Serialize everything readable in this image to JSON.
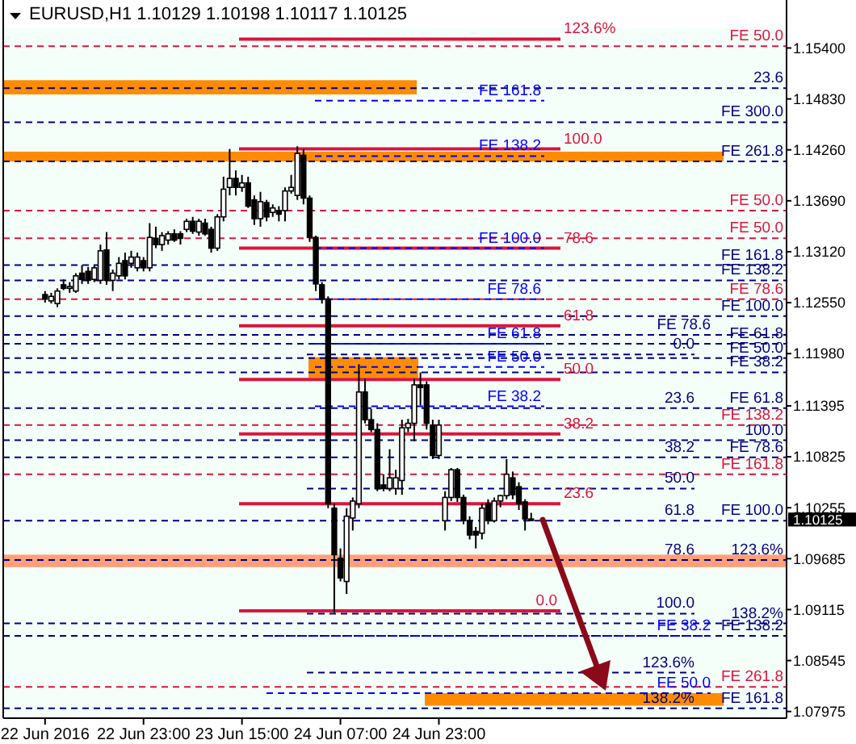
{
  "chart_data": {
    "type": "candlestick",
    "title": "EURUSD,H1  1.10129 1.10198 1.10117 1.10125",
    "categories": [
      "22 Jun 2016",
      null,
      null,
      null,
      null,
      null,
      null,
      null,
      null,
      null,
      null,
      null,
      null,
      null,
      null,
      null,
      "22 Jun 23:00",
      null,
      null,
      null,
      null,
      null,
      null,
      null,
      null,
      null,
      null,
      null,
      null,
      null,
      null,
      null,
      "23 Jun 15:00",
      null,
      null,
      null,
      null,
      null,
      null,
      null,
      null,
      null,
      null,
      null,
      null,
      null,
      null,
      null,
      "24 Jun 07:00",
      null,
      null,
      null,
      null,
      null,
      null,
      null,
      null,
      null,
      null,
      null,
      null,
      null,
      null,
      null,
      "24 Jun 23:00",
      null,
      null,
      null,
      null,
      null,
      null,
      null,
      null,
      null,
      null,
      null,
      null,
      null,
      null,
      null,
      null,
      null,
      null,
      null,
      null,
      null,
      null,
      null,
      null,
      null,
      null,
      null,
      null,
      null,
      null,
      null,
      null,
      null,
      null,
      null,
      null,
      null,
      null,
      null,
      null,
      null,
      null,
      null,
      null,
      null,
      null,
      null,
      null,
      null,
      null,
      null,
      null,
      null,
      null,
      null,
      null
    ],
    "ohlc": [
      [
        1.1264,
        1.1268,
        1.1255,
        1.1259
      ],
      [
        1.1257,
        1.1266,
        1.1254,
        1.1262
      ],
      [
        1.1254,
        1.1271,
        1.125,
        1.1268
      ],
      [
        1.1275,
        1.1281,
        1.1269,
        1.1271
      ],
      [
        1.1271,
        1.1278,
        1.1266,
        1.1273
      ],
      [
        1.1268,
        1.1288,
        1.1266,
        1.1285
      ],
      [
        1.1288,
        1.1297,
        1.1276,
        1.1281
      ],
      [
        1.129,
        1.1295,
        1.1276,
        1.128
      ],
      [
        1.1281,
        1.1297,
        1.1278,
        1.1294
      ],
      [
        1.128,
        1.132,
        1.1276,
        1.1313
      ],
      [
        1.1314,
        1.1334,
        1.1275,
        1.128
      ],
      [
        1.128,
        1.1292,
        1.1268,
        1.1288
      ],
      [
        1.1285,
        1.1306,
        1.1281,
        1.1299
      ],
      [
        1.1302,
        1.1311,
        1.1281,
        1.1285
      ],
      [
        1.1299,
        1.1313,
        1.1294,
        1.1306
      ],
      [
        1.1294,
        1.1311,
        1.129,
        1.1306
      ],
      [
        1.1302,
        1.1306,
        1.129,
        1.1294
      ],
      [
        1.1294,
        1.1344,
        1.129,
        1.1328
      ],
      [
        1.1327,
        1.134,
        1.1316,
        1.132
      ],
      [
        1.132,
        1.1334,
        1.1313,
        1.133
      ],
      [
        1.1325,
        1.1335,
        1.132,
        1.1332
      ],
      [
        1.1332,
        1.1337,
        1.1323,
        1.1325
      ],
      [
        1.1332,
        1.1335,
        1.132,
        1.1327
      ],
      [
        1.1337,
        1.1349,
        1.1334,
        1.1346
      ],
      [
        1.1346,
        1.1351,
        1.1332,
        1.1335
      ],
      [
        1.1334,
        1.1349,
        1.133,
        1.1346
      ],
      [
        1.1344,
        1.1349,
        1.133,
        1.1332
      ],
      [
        1.1337,
        1.134,
        1.1311,
        1.1316
      ],
      [
        1.1316,
        1.1354,
        1.1313,
        1.1351
      ],
      [
        1.1351,
        1.1396,
        1.1346,
        1.1382
      ],
      [
        1.1384,
        1.1427,
        1.1375,
        1.1394
      ],
      [
        1.1394,
        1.1403,
        1.1375,
        1.1384
      ],
      [
        1.1384,
        1.1398,
        1.1379,
        1.1389
      ],
      [
        1.1389,
        1.1396,
        1.1361,
        1.1363
      ],
      [
        1.137,
        1.1375,
        1.1342,
        1.1349
      ],
      [
        1.1349,
        1.1379,
        1.134,
        1.1368
      ],
      [
        1.1367,
        1.137,
        1.1346,
        1.1351
      ],
      [
        1.1356,
        1.1365,
        1.1351,
        1.1361
      ],
      [
        1.1358,
        1.1363,
        1.1346,
        1.1354
      ],
      [
        1.1358,
        1.1384,
        1.1346,
        1.138
      ],
      [
        1.138,
        1.1398,
        1.1377,
        1.1384
      ],
      [
        1.1375,
        1.143,
        1.137,
        1.1422
      ],
      [
        1.142,
        1.1427,
        1.1365,
        1.1372
      ],
      [
        1.1372,
        1.1375,
        1.1323,
        1.1328
      ],
      [
        1.1328,
        1.133,
        1.1268,
        1.1276
      ],
      [
        1.1275,
        1.1278,
        1.1254,
        1.1259
      ],
      [
        1.1259,
        1.1262,
        1.1025,
        1.103
      ],
      [
        1.1025,
        1.103,
        1.0908,
        1.0973
      ],
      [
        1.0969,
        1.098,
        1.0943,
        1.0947
      ],
      [
        1.0943,
        1.1025,
        1.0929,
        1.1016
      ],
      [
        1.1014,
        1.1037,
        1.1,
        1.1033
      ],
      [
        1.103,
        1.1186,
        1.1025,
        1.1155
      ],
      [
        1.1155,
        1.117,
        1.112,
        1.1124
      ],
      [
        1.1124,
        1.1136,
        1.111,
        1.1113
      ],
      [
        1.1113,
        1.112,
        1.1044,
        1.1047
      ],
      [
        1.1051,
        1.1063,
        1.1044,
        1.1047
      ],
      [
        1.1047,
        1.1091,
        1.1044,
        1.1059
      ],
      [
        1.1047,
        1.1068,
        1.104,
        1.1059
      ],
      [
        1.1056,
        1.1124,
        1.104,
        1.1115
      ],
      [
        1.1115,
        1.1125,
        1.111,
        1.112
      ],
      [
        1.112,
        1.117,
        1.11,
        1.1163
      ],
      [
        1.1163,
        1.1177,
        1.114,
        1.116
      ],
      [
        1.1163,
        1.1167,
        1.1113,
        1.112
      ],
      [
        1.1118,
        1.1124,
        1.108,
        1.1084
      ],
      [
        1.1084,
        1.1124,
        1.108,
        1.1118
      ],
      [
        1.1011,
        1.1044,
        1.1,
        1.1037
      ],
      [
        1.1037,
        1.107,
        1.1033,
        1.1068
      ],
      [
        1.1068,
        1.107,
        1.1032,
        1.1037
      ],
      [
        1.1037,
        1.104,
        1.1007,
        1.1011
      ],
      [
        1.1011,
        1.1016,
        1.099,
        1.0995
      ],
      [
        1.0999,
        1.1004,
        1.098,
        1.0995
      ],
      [
        1.0997,
        1.103,
        1.099,
        1.1025
      ],
      [
        1.103,
        1.1035,
        1.1007,
        1.1011
      ],
      [
        1.1011,
        1.1037,
        1.1009,
        1.1033
      ],
      [
        1.1033,
        1.104,
        1.1026,
        1.1039
      ],
      [
        1.1039,
        1.108,
        1.1035,
        1.1063
      ],
      [
        1.1059,
        1.1066,
        1.1035,
        1.104
      ],
      [
        1.1049,
        1.1054,
        1.1023,
        1.103
      ],
      [
        1.1032,
        1.1035,
        1.1,
        1.1013
      ],
      [
        1.10129,
        1.10198,
        1.10117,
        1.10125
      ],
      null,
      null,
      null,
      null,
      null,
      null,
      null,
      null,
      null,
      null,
      null,
      null,
      null,
      null,
      null,
      null,
      null,
      null,
      null,
      null,
      null,
      null,
      null,
      null,
      null,
      null,
      null,
      null,
      null,
      null,
      null,
      null,
      null,
      null,
      null,
      null,
      null,
      null,
      null,
      null,
      null
    ],
    "ylim": [
      1.079,
      1.1563
    ],
    "yticks": [
      {
        "value": 1.154,
        "label": "1.15400"
      },
      {
        "value": 1.1483,
        "label": "1.14830"
      },
      {
        "value": 1.1426,
        "label": "1.14260"
      },
      {
        "value": 1.1369,
        "label": "1.13690"
      },
      {
        "value": 1.1312,
        "label": "1.13120"
      },
      {
        "value": 1.1255,
        "label": "1.12550"
      },
      {
        "value": 1.1198,
        "label": "1.11980"
      },
      {
        "value": 1.11395,
        "label": "1.11395"
      },
      {
        "value": 1.10825,
        "label": "1.10825"
      },
      {
        "value": 1.10255,
        "label": "1.10255"
      },
      {
        "value": 1.10125,
        "label": "1.10125"
      },
      {
        "value": 1.09685,
        "label": "1.09685"
      },
      {
        "value": 1.09115,
        "label": "1.09115"
      },
      {
        "value": 1.08545,
        "label": "1.08545"
      },
      {
        "value": 1.07975,
        "label": "1.07975"
      }
    ],
    "bands": [
      {
        "axis": "y",
        "from": 1.1488,
        "to": 1.1504,
        "color": "#ff8c00"
      },
      {
        "axis": "y",
        "from": 1.1413,
        "to": 1.1424,
        "color": "#ff8c00"
      },
      {
        "axis": "y",
        "from": 1.1171,
        "to": 1.1194,
        "color": "#ff8c00"
      },
      {
        "axis": "y",
        "from": 1.0959,
        "to": 1.0973,
        "color": "#ffa07a"
      },
      {
        "axis": "y",
        "from": 1.0804,
        "to": 1.0818,
        "color": "#ff8c00"
      }
    ],
    "ref_lines": [
      {
        "axis": "y",
        "value": 1.1542,
        "label": "FE 50.0",
        "color": "#dc143c",
        "line_style": "dashed"
      },
      {
        "axis": "y",
        "value": 1.155,
        "color": "#dc143c",
        "line_style": "solid"
      },
      {
        "axis": "y",
        "value": 1.1495,
        "color": "#000080",
        "line_style": "dashed"
      },
      {
        "axis": "y",
        "value": 1.1481,
        "label": "FE 161.8",
        "color": "#0000ff",
        "line_style": "dashed"
      },
      {
        "axis": "y",
        "value": 1.1457,
        "label": "FE 300.0",
        "color": "#000080",
        "line_style": "dashed"
      },
      {
        "axis": "y",
        "value": 1.1427,
        "color": "#dc143c",
        "line_style": "solid"
      },
      {
        "axis": "y",
        "value": 1.1419,
        "label": "FE 138.2",
        "color": "#0000ff",
        "line_style": "dashed"
      },
      {
        "axis": "y",
        "value": 1.1413,
        "label": "FE 261.8",
        "color": "#000080",
        "line_style": "dashed"
      },
      {
        "axis": "y",
        "value": 1.1358,
        "label": "FE 50.0",
        "color": "#dc143c",
        "line_style": "dashed"
      },
      {
        "axis": "y",
        "value": 1.1327,
        "label": "FE 50.0",
        "color": "#dc143c",
        "line_style": "dashed"
      },
      {
        "axis": "y",
        "value": 1.1316,
        "color": "#dc143c",
        "line_style": "solid"
      },
      {
        "axis": "y",
        "value": 1.1316,
        "label": "FE 100.0",
        "color": "#0000ff",
        "line_style": "dashed"
      },
      {
        "axis": "y",
        "value": 1.1297,
        "label": "FE 161.8",
        "color": "#000080",
        "line_style": "dashed"
      },
      {
        "axis": "y",
        "value": 1.128,
        "label": "FE 138.2",
        "color": "#000080",
        "line_style": "dashed"
      },
      {
        "axis": "y",
        "value": 1.1259,
        "label": "FE 78.6",
        "color": "#dc143c",
        "line_style": "dashed"
      },
      {
        "axis": "y",
        "value": 1.1259,
        "label": "FE 78.6",
        "color": "#0000ff",
        "line_style": "dashed"
      },
      {
        "axis": "y",
        "value": 1.124,
        "label": "FE 100.0",
        "color": "#000080",
        "line_style": "dashed"
      },
      {
        "axis": "y",
        "value": 1.1229,
        "color": "#dc143c",
        "line_style": "solid"
      },
      {
        "axis": "y",
        "value": 1.1219,
        "label": "FE 78.6",
        "color": "#000080",
        "line_style": "dashed"
      },
      {
        "axis": "y",
        "value": 1.1209,
        "label": "FE 61.8",
        "color": "#000080",
        "line_style": "dashed"
      },
      {
        "axis": "y",
        "value": 1.1209,
        "label": "FE 61.8",
        "color": "#0000ff",
        "line_style": "dashed"
      },
      {
        "axis": "y",
        "value": 1.1197,
        "color": "#000080",
        "line_style": "dashed"
      },
      {
        "axis": "y",
        "value": 1.1193,
        "label": "FE 50.0",
        "color": "#000080",
        "line_style": "dashed"
      },
      {
        "axis": "y",
        "value": 1.1183,
        "label": "FE 50.0",
        "color": "#0000ff",
        "line_style": "dashed"
      },
      {
        "axis": "y",
        "value": 1.1177,
        "label": "FE 38.2",
        "color": "#000080",
        "line_style": "dashed"
      },
      {
        "axis": "y",
        "value": 1.1169,
        "color": "#dc143c",
        "line_style": "solid"
      },
      {
        "axis": "y",
        "value": 1.1139,
        "label": "FE 38.2",
        "color": "#0000ff",
        "line_style": "dashed"
      },
      {
        "axis": "y",
        "value": 1.1137,
        "label": "FE 61.8",
        "color": "#000080",
        "line_style": "dashed"
      },
      {
        "axis": "y",
        "value": 1.1118,
        "label": "FE 138.2",
        "color": "#dc143c",
        "line_style": "dashed"
      },
      {
        "axis": "y",
        "value": 1.1108,
        "color": "#dc143c",
        "line_style": "solid"
      },
      {
        "axis": "y",
        "value": 1.1101,
        "color": "#000080",
        "line_style": "dashed"
      },
      {
        "axis": "y",
        "value": 1.1082,
        "label": "FE 78.6",
        "color": "#000080",
        "line_style": "dashed"
      },
      {
        "axis": "y",
        "value": 1.1063,
        "label": "FE 161.8",
        "color": "#dc143c",
        "line_style": "dashed"
      },
      {
        "axis": "y",
        "value": 1.1047,
        "color": "#000080",
        "line_style": "dashed"
      },
      {
        "axis": "y",
        "value": 1.103,
        "color": "#dc143c",
        "line_style": "solid"
      },
      {
        "axis": "y",
        "value": 1.1011,
        "label": "FE 100.0",
        "color": "#000080",
        "line_style": "dashed"
      },
      {
        "axis": "y",
        "value": 1.0967,
        "color": "#000080",
        "line_style": "dashed"
      },
      {
        "axis": "y",
        "value": 1.091,
        "color": "#dc143c",
        "line_style": "solid"
      },
      {
        "axis": "y",
        "value": 1.0907,
        "color": "#000080",
        "line_style": "dashed"
      },
      {
        "axis": "y",
        "value": 1.0896,
        "color": "#000080",
        "line_style": "dashed"
      },
      {
        "axis": "y",
        "value": 1.0882,
        "label": "FE 138.2",
        "color": "#000080",
        "line_style": "dashed"
      },
      {
        "axis": "y",
        "value": 1.0882,
        "label": "FE 38.2",
        "color": "#0000ff",
        "line_style": "dashed"
      },
      {
        "axis": "y",
        "value": 1.0841,
        "color": "#000080",
        "line_style": "dashed"
      },
      {
        "axis": "y",
        "value": 1.0825,
        "label": "FE 261.8",
        "color": "#dc143c",
        "line_style": "dashed"
      },
      {
        "axis": "y",
        "value": 1.0818,
        "label": "FE 50.0",
        "color": "#0000ff",
        "line_style": "dashed"
      },
      {
        "axis": "y",
        "value": 1.0801,
        "label": "FE 161.8",
        "color": "#000080",
        "line_style": "dashed"
      }
    ],
    "annotations": [
      "123.6%",
      "23.6",
      "100.0",
      "78.6",
      "61.8",
      "0.0",
      "50.0",
      "23.6",
      "38.2",
      "100.0",
      "38.2",
      "50.0",
      "23.6",
      "61.8",
      "123.6%",
      "78.6",
      "0.0",
      "100.0",
      "138.2%",
      "123.6%",
      "138.2%"
    ]
  }
}
